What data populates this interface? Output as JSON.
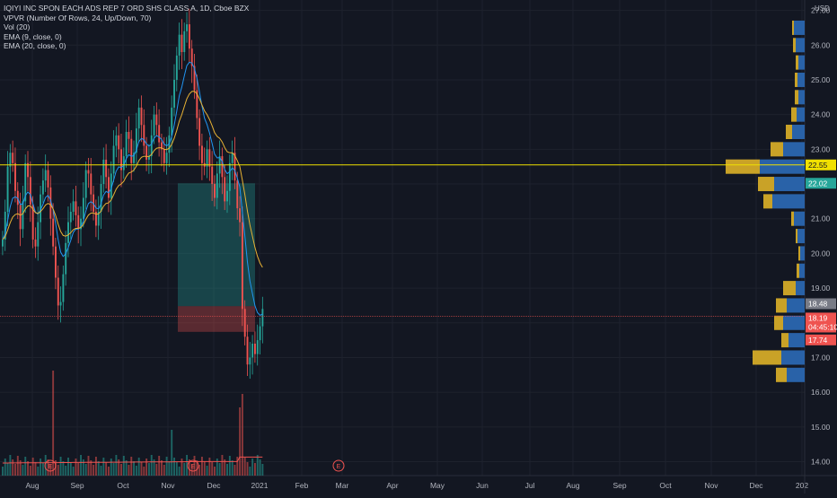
{
  "legend": {
    "symbol": "IQIYI INC SPON EACH ADS REP 7 ORD SHS CLASS A, 1D, Cboe BZX",
    "vpvr": "VPVR (Number Of Rows, 24, Up/Down, 70)",
    "vol": "Vol (20)",
    "ema9": "EMA (9, close, 0)",
    "ema20": "EMA (20, close, 0)"
  },
  "currency": "USD",
  "colors": {
    "background": "#131722",
    "up": "#26a69a",
    "down": "#ef5350",
    "ema9": "#2196f3",
    "ema20": "#e8b234",
    "vp_up": "#2962a8",
    "vp_down": "#c9a227",
    "hline": "#f0e000"
  },
  "chart_data": {
    "type": "candlestick",
    "ylim": [
      13.6,
      27.3
    ],
    "y_ticks": [
      "14.00",
      "15.00",
      "16.00",
      "17.00",
      "18.00",
      "19.00",
      "20.00",
      "21.00",
      "22.00",
      "23.00",
      "24.00",
      "25.00",
      "26.00",
      "27.00"
    ],
    "x_ticks": [
      "Aug",
      "Sep",
      "Oct",
      "Nov",
      "Dec",
      "2021",
      "Feb",
      "Mar",
      "Apr",
      "May",
      "Jun",
      "Jul",
      "Aug",
      "Sep",
      "Oct",
      "Nov",
      "Dec",
      "202"
    ],
    "close_series": [
      20.4,
      21.2,
      22.5,
      22.9,
      22.6,
      21.8,
      21.4,
      20.7,
      21.5,
      22.6,
      22.2,
      21.4,
      20.4,
      20.2,
      20.9,
      21.7,
      22.1,
      22.4,
      21.9,
      21.0,
      20.2,
      19.3,
      18.5,
      18.6,
      19.4,
      20.3,
      20.9,
      21.2,
      21.5,
      21.1,
      20.7,
      21.0,
      21.6,
      22.4,
      22.3,
      21.7,
      21.2,
      20.8,
      21.2,
      22.0,
      22.7,
      22.2,
      21.6,
      22.3,
      23.1,
      23.4,
      23.0,
      22.4,
      22.8,
      23.5,
      23.3,
      22.6,
      22.9,
      23.6,
      24.2,
      23.7,
      23.1,
      22.7,
      22.8,
      23.4,
      24.0,
      23.7,
      23.2,
      23.0,
      22.6,
      22.9,
      23.4,
      24.2,
      25.0,
      25.7,
      26.3,
      25.8,
      26.4,
      26.6,
      25.9,
      25.4,
      24.7,
      23.9,
      23.1,
      22.6,
      22.5,
      23.0,
      22.5,
      22.0,
      21.6,
      22.3,
      22.8,
      22.2,
      21.5,
      21.8,
      22.6,
      22.9,
      22.1,
      21.3,
      20.9,
      18.4,
      17.6,
      16.8,
      17.0,
      17.4,
      17.1,
      17.5,
      17.9,
      18.4
    ],
    "price_labels": {
      "current": "18.19",
      "close_prev": "18.48",
      "countdown": "04:45:10",
      "low": "17.74",
      "hline": "22.55",
      "trade_entry": "22.02"
    },
    "earnings_markers": [
      "E",
      "E",
      "E"
    ],
    "volume_profile": [
      {
        "price": 26.5,
        "up": 12,
        "down": 2
      },
      {
        "price": 26.0,
        "up": 10,
        "down": 3
      },
      {
        "price": 25.5,
        "up": 7,
        "down": 3
      },
      {
        "price": 25.0,
        "up": 8,
        "down": 3
      },
      {
        "price": 24.5,
        "up": 7,
        "down": 4
      },
      {
        "price": 24.0,
        "up": 9,
        "down": 6
      },
      {
        "price": 23.5,
        "up": 14,
        "down": 7
      },
      {
        "price": 23.0,
        "up": 24,
        "down": 14
      },
      {
        "price": 22.5,
        "up": 50,
        "down": 38
      },
      {
        "price": 22.0,
        "up": 34,
        "down": 18
      },
      {
        "price": 21.5,
        "up": 36,
        "down": 10
      },
      {
        "price": 21.0,
        "up": 12,
        "down": 3
      },
      {
        "price": 20.5,
        "up": 8,
        "down": 2
      },
      {
        "price": 20.0,
        "up": 5,
        "down": 2
      },
      {
        "price": 19.5,
        "up": 6,
        "down": 3
      },
      {
        "price": 19.0,
        "up": 10,
        "down": 14
      },
      {
        "price": 18.5,
        "up": 20,
        "down": 12
      },
      {
        "price": 18.0,
        "up": 24,
        "down": 10
      },
      {
        "price": 17.5,
        "up": 18,
        "down": 8
      },
      {
        "price": 17.0,
        "up": 26,
        "down": 32
      },
      {
        "price": 16.5,
        "up": 20,
        "down": 12
      }
    ]
  }
}
